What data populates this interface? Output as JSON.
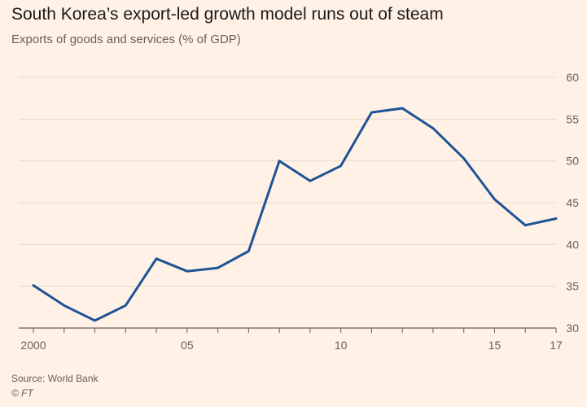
{
  "chart_data": {
    "type": "line",
    "title": "South Korea’s export-led growth model runs out of steam",
    "subtitle": "Exports of goods and services (% of GDP)",
    "xlabel": "",
    "ylabel": "",
    "x": [
      2000,
      2001,
      2002,
      2003,
      2004,
      2005,
      2006,
      2007,
      2008,
      2009,
      2010,
      2011,
      2012,
      2013,
      2014,
      2015,
      2016,
      2017
    ],
    "xticks": [
      2000,
      2005,
      2010,
      2015,
      2017
    ],
    "xtick_labels": [
      "2000",
      "05",
      "10",
      "15",
      "17"
    ],
    "ylim": [
      30,
      60
    ],
    "yticks": [
      30,
      35,
      40,
      45,
      50,
      55,
      60
    ],
    "series": [
      {
        "name": "Exports of goods and services (% of GDP)",
        "color": "#1f5396",
        "values": [
          35.1,
          32.7,
          30.9,
          32.7,
          38.3,
          36.8,
          37.2,
          39.2,
          50.0,
          47.6,
          49.4,
          55.8,
          56.3,
          53.9,
          50.3,
          45.4,
          42.3,
          43.1
        ]
      }
    ],
    "grid": true
  },
  "footer": {
    "source": "Source: World Bank",
    "credit": "© FT"
  }
}
